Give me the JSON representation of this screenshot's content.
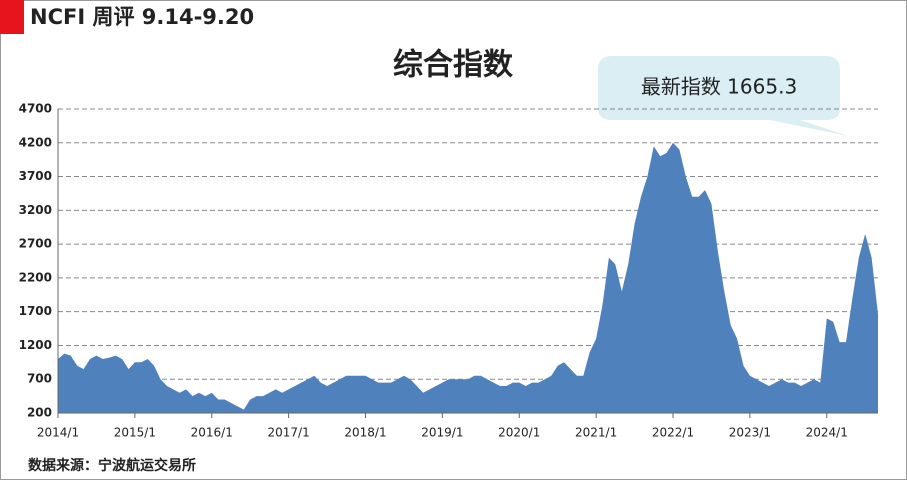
{
  "header": {
    "title": "NCFI 周评 9.14-9.20"
  },
  "chart_data": {
    "type": "area",
    "title": "综合指数",
    "annotation": "最新指数 1665.3",
    "source": "数据来源：宁波航运交易所",
    "color": "#4f81bd",
    "grid": true,
    "x": [
      "2014/1",
      "2014/2",
      "2014/3",
      "2014/4",
      "2014/5",
      "2014/6",
      "2014/7",
      "2014/8",
      "2014/9",
      "2014/10",
      "2014/11",
      "2014/12",
      "2015/1",
      "2015/2",
      "2015/3",
      "2015/4",
      "2015/5",
      "2015/6",
      "2015/7",
      "2015/8",
      "2015/9",
      "2015/10",
      "2015/11",
      "2015/12",
      "2016/1",
      "2016/2",
      "2016/3",
      "2016/4",
      "2016/5",
      "2016/6",
      "2016/7",
      "2016/8",
      "2016/9",
      "2016/10",
      "2016/11",
      "2016/12",
      "2017/1",
      "2017/2",
      "2017/3",
      "2017/4",
      "2017/5",
      "2017/6",
      "2017/7",
      "2017/8",
      "2017/9",
      "2017/10",
      "2017/11",
      "2017/12",
      "2018/1",
      "2018/2",
      "2018/3",
      "2018/4",
      "2018/5",
      "2018/6",
      "2018/7",
      "2018/8",
      "2018/9",
      "2018/10",
      "2018/11",
      "2018/12",
      "2019/1",
      "2019/2",
      "2019/3",
      "2019/4",
      "2019/5",
      "2019/6",
      "2019/7",
      "2019/8",
      "2019/9",
      "2019/10",
      "2019/11",
      "2019/12",
      "2020/1",
      "2020/2",
      "2020/3",
      "2020/4",
      "2020/5",
      "2020/6",
      "2020/7",
      "2020/8",
      "2020/9",
      "2020/10",
      "2020/11",
      "2020/12",
      "2021/1",
      "2021/2",
      "2021/3",
      "2021/4",
      "2021/5",
      "2021/6",
      "2021/7",
      "2021/8",
      "2021/9",
      "2021/10",
      "2021/11",
      "2021/12",
      "2022/1",
      "2022/2",
      "2022/3",
      "2022/4",
      "2022/5",
      "2022/6",
      "2022/7",
      "2022/8",
      "2022/9",
      "2022/10",
      "2022/11",
      "2022/12",
      "2023/1",
      "2023/2",
      "2023/3",
      "2023/4",
      "2023/5",
      "2023/6",
      "2023/7",
      "2023/8",
      "2023/9",
      "2023/10",
      "2023/11",
      "2023/12",
      "2024/1",
      "2024/2",
      "2024/3",
      "2024/4",
      "2024/5",
      "2024/6",
      "2024/7",
      "2024/8",
      "2024/9"
    ],
    "values": [
      1000,
      1080,
      1050,
      900,
      850,
      1000,
      1050,
      1000,
      1020,
      1050,
      1000,
      850,
      950,
      950,
      1000,
      900,
      700,
      600,
      550,
      500,
      550,
      450,
      500,
      450,
      500,
      400,
      400,
      350,
      300,
      250,
      400,
      450,
      450,
      500,
      550,
      500,
      550,
      600,
      650,
      700,
      750,
      650,
      600,
      650,
      700,
      750,
      750,
      750,
      750,
      700,
      650,
      650,
      650,
      700,
      750,
      700,
      600,
      500,
      550,
      600,
      650,
      700,
      700,
      700,
      700,
      750,
      750,
      700,
      650,
      600,
      600,
      650,
      650,
      600,
      650,
      650,
      700,
      750,
      900,
      950,
      850,
      750,
      750,
      1100,
      1300,
      1800,
      2500,
      2400,
      2000,
      2400,
      3000,
      3400,
      3700,
      4150,
      4000,
      4050,
      4200,
      4100,
      3700,
      3400,
      3400,
      3500,
      3300,
      2600,
      2000,
      1500,
      1300,
      900,
      750,
      700,
      650,
      600,
      650,
      700,
      650,
      650,
      600,
      650,
      700,
      650,
      1600,
      1550,
      1250,
      1250,
      1900,
      2500,
      2850,
      2500,
      1665.3
    ],
    "ylim": [
      200,
      4700
    ],
    "yticks": [
      200,
      700,
      1200,
      1700,
      2200,
      2700,
      3200,
      3700,
      4200,
      4700
    ]
  }
}
